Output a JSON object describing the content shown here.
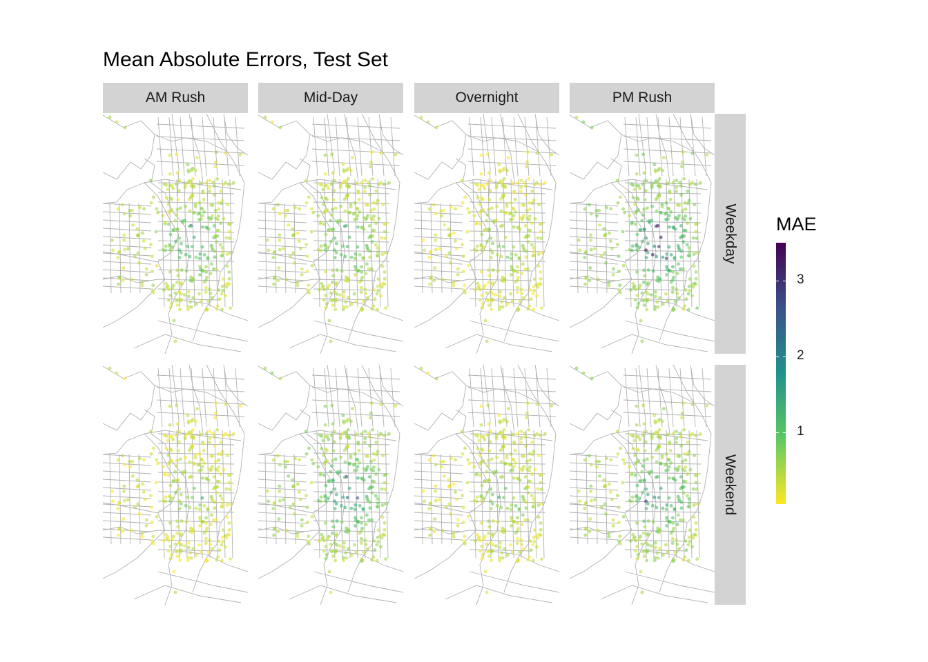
{
  "title": "Mean Absolute Errors, Test Set",
  "chart_data": {
    "type": "faceted-map-scatter",
    "title": "Mean Absolute Errors, Test Set",
    "facet_columns": [
      "AM Rush",
      "Mid-Day",
      "Overnight",
      "PM Rush"
    ],
    "facet_rows": [
      "Weekday",
      "Weekend"
    ],
    "legend": {
      "title": "MAE",
      "placement": "right",
      "colormap": "viridis (reversed: low=yellow, high=purple)",
      "range": [
        0.05,
        3.5
      ],
      "ticks": [
        1,
        2,
        3
      ],
      "tick_labels": [
        "1",
        "2",
        "3"
      ]
    },
    "colors": {
      "low": "#fde725",
      "mid": "#21918c",
      "high": "#440154",
      "basemap": "#b0b0b0",
      "strip": "#d3d3d3"
    },
    "mae_level_by_panel": {
      "Weekday": {
        "AM Rush": 1.0,
        "Mid-Day": 0.9,
        "Overnight": 0.6,
        "PM Rush": 1.5
      },
      "Weekend": {
        "AM Rush": 0.6,
        "Mid-Day": 1.3,
        "Overnight": 0.7,
        "PM Rush": 1.2
      }
    },
    "hotspots": {
      "Weekday": {
        "AM Rush": 2.8,
        "Mid-Day": 1.9,
        "Overnight": 1.5,
        "PM Rush": 3.4
      },
      "Weekend": {
        "AM Rush": 1.6,
        "Mid-Day": 3.0,
        "Overnight": 1.6,
        "PM Rush": 3.1
      }
    },
    "grid": false
  }
}
